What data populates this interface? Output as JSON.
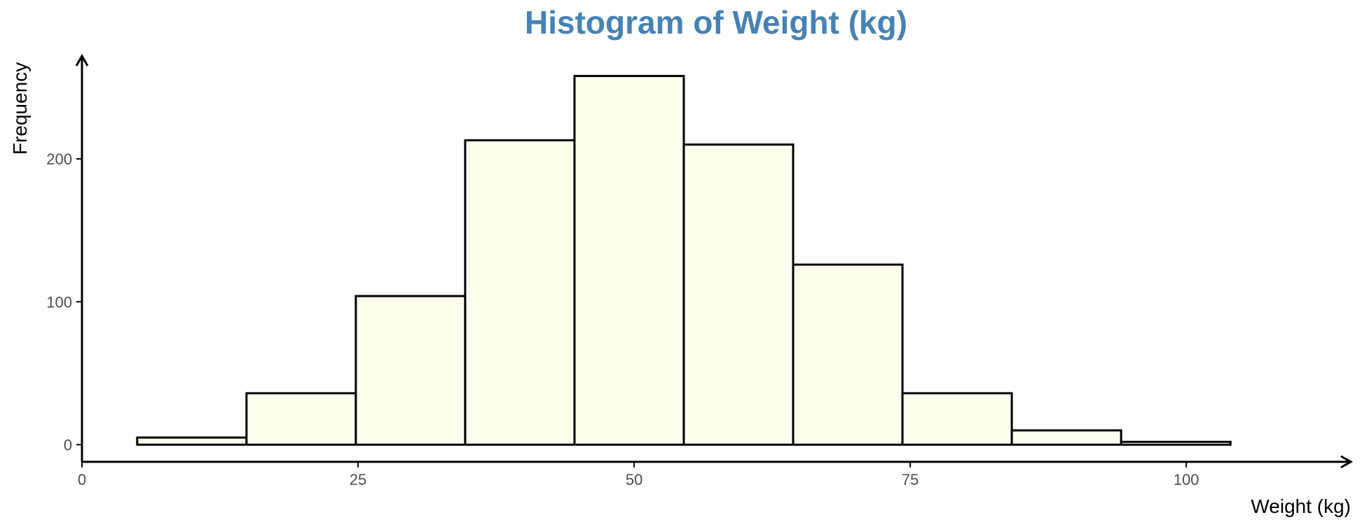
{
  "chart_data": {
    "type": "bar",
    "title": "Histogram of Weight (kg)",
    "xlabel": "Weight (kg)",
    "ylabel": "Frequency",
    "xlim": [
      0,
      105
    ],
    "ylim": [
      -12,
      272
    ],
    "x_ticks": [
      0,
      25,
      50,
      75,
      100
    ],
    "y_ticks": [
      0,
      100,
      200
    ],
    "bins": [
      {
        "start": 5.0,
        "end": 14.9,
        "count": 5
      },
      {
        "start": 14.9,
        "end": 24.8,
        "count": 36
      },
      {
        "start": 24.8,
        "end": 34.7,
        "count": 104
      },
      {
        "start": 34.7,
        "end": 44.6,
        "count": 213
      },
      {
        "start": 44.6,
        "end": 54.5,
        "count": 258
      },
      {
        "start": 54.5,
        "end": 64.4,
        "count": 210
      },
      {
        "start": 64.4,
        "end": 74.3,
        "count": 126
      },
      {
        "start": 74.3,
        "end": 84.2,
        "count": 36
      },
      {
        "start": 84.2,
        "end": 94.1,
        "count": 10
      },
      {
        "start": 94.1,
        "end": 104.0,
        "count": 2
      }
    ],
    "grid": false,
    "legend": "none",
    "colors": {
      "bar_fill": "#fffcee",
      "bar_stroke": "#000000",
      "title": "#4682b4",
      "axis": "#000000"
    }
  }
}
